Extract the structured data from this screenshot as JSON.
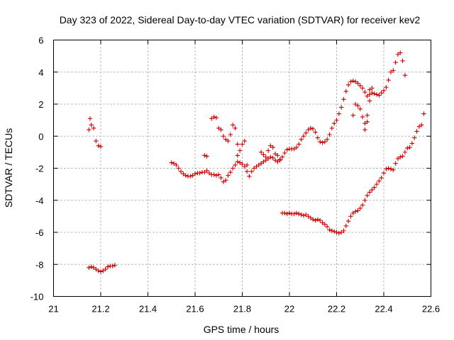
{
  "chart_data": {
    "type": "scatter",
    "title": "Day 323 of 2022, Sidereal Day-to-day VTEC variation (SDTVAR) for receiver kev2",
    "xlabel": "GPS time / hours",
    "ylabel": "SDTVAR / TECUs",
    "xlim": [
      21,
      22.6
    ],
    "ylim": [
      -10,
      6
    ],
    "xticks": [
      21,
      21.2,
      21.4,
      21.6,
      21.8,
      22,
      22.2,
      22.4,
      22.6
    ],
    "yticks": [
      -10,
      -8,
      -6,
      -4,
      -2,
      0,
      2,
      4,
      6
    ],
    "xtick_labels": [
      "21",
      "21.2",
      "21.4",
      "21.6",
      "21.8",
      "22",
      "22.2",
      "22.4",
      "22.6"
    ],
    "ytick_labels": [
      "-10",
      "-8",
      "-6",
      "-4",
      "-2",
      "0",
      "2",
      "4",
      "6"
    ],
    "grid": true,
    "marker": "+",
    "color": "#cc0000",
    "series": [
      {
        "name": "track-1",
        "points": [
          [
            21.15,
            0.4
          ],
          [
            21.155,
            1.1
          ],
          [
            21.16,
            0.7
          ],
          [
            21.17,
            0.5
          ],
          [
            21.18,
            -0.3
          ],
          [
            21.19,
            -0.6
          ],
          [
            21.2,
            -0.65
          ]
        ]
      },
      {
        "name": "track-2",
        "points": [
          [
            21.15,
            -8.2
          ],
          [
            21.16,
            -8.15
          ],
          [
            21.17,
            -8.2
          ],
          [
            21.18,
            -8.3
          ],
          [
            21.19,
            -8.4
          ],
          [
            21.2,
            -8.45
          ],
          [
            21.21,
            -8.4
          ],
          [
            21.22,
            -8.3
          ],
          [
            21.23,
            -8.15
          ],
          [
            21.24,
            -8.1
          ],
          [
            21.25,
            -8.1
          ],
          [
            21.26,
            -8.05
          ]
        ]
      },
      {
        "name": "track-3",
        "points": [
          [
            21.5,
            -1.65
          ],
          [
            21.51,
            -1.7
          ],
          [
            21.52,
            -1.8
          ],
          [
            21.53,
            -2.0
          ],
          [
            21.54,
            -2.2
          ],
          [
            21.55,
            -2.35
          ],
          [
            21.56,
            -2.45
          ],
          [
            21.57,
            -2.5
          ],
          [
            21.58,
            -2.5
          ],
          [
            21.59,
            -2.45
          ],
          [
            21.6,
            -2.35
          ],
          [
            21.61,
            -2.3
          ],
          [
            21.62,
            -2.3
          ],
          [
            21.63,
            -2.25
          ],
          [
            21.64,
            -2.25
          ],
          [
            21.65,
            -2.15
          ],
          [
            21.66,
            -2.3
          ],
          [
            21.67,
            -2.4
          ],
          [
            21.68,
            -2.4
          ],
          [
            21.69,
            -2.45
          ],
          [
            21.7,
            -2.4
          ],
          [
            21.71,
            -2.6
          ],
          [
            21.72,
            -2.85
          ],
          [
            21.73,
            -2.75
          ],
          [
            21.74,
            -2.45
          ],
          [
            21.75,
            -2.25
          ],
          [
            21.76,
            -2.0
          ],
          [
            21.77,
            -1.8
          ],
          [
            21.78,
            -1.6
          ],
          [
            21.79,
            -1.65
          ],
          [
            21.8,
            -1.75
          ],
          [
            21.81,
            -1.9
          ],
          [
            21.82,
            -2.2
          ],
          [
            21.83,
            -2.5
          ],
          [
            21.84,
            -2.2
          ],
          [
            21.85,
            -2.0
          ],
          [
            21.86,
            -1.9
          ],
          [
            21.87,
            -1.8
          ],
          [
            21.88,
            -1.7
          ],
          [
            21.89,
            -1.6
          ],
          [
            21.9,
            -1.5
          ],
          [
            21.91,
            -1.4
          ],
          [
            21.92,
            -1.3
          ],
          [
            21.93,
            -1.35
          ],
          [
            21.94,
            -1.5
          ],
          [
            21.95,
            -1.6
          ],
          [
            21.96,
            -1.45
          ],
          [
            21.97,
            -1.3
          ],
          [
            21.98,
            -1.05
          ],
          [
            21.99,
            -0.85
          ],
          [
            22.0,
            -0.8
          ],
          [
            22.01,
            -0.8
          ],
          [
            22.02,
            -0.8
          ],
          [
            22.03,
            -0.7
          ],
          [
            22.04,
            -0.5
          ],
          [
            22.05,
            -0.2
          ],
          [
            22.06,
            0.0
          ],
          [
            22.07,
            0.2
          ],
          [
            22.08,
            0.4
          ],
          [
            22.09,
            0.5
          ],
          [
            22.1,
            0.45
          ],
          [
            22.11,
            0.25
          ],
          [
            22.12,
            -0.1
          ],
          [
            22.13,
            -0.35
          ],
          [
            22.14,
            -0.4
          ],
          [
            22.15,
            -0.35
          ],
          [
            22.16,
            -0.2
          ],
          [
            22.17,
            0.1
          ],
          [
            22.18,
            0.5
          ],
          [
            22.19,
            0.8
          ],
          [
            22.2,
            1.0
          ],
          [
            22.21,
            1.4
          ],
          [
            22.22,
            1.8
          ],
          [
            22.23,
            2.3
          ],
          [
            22.24,
            2.8
          ],
          [
            22.25,
            3.2
          ],
          [
            22.26,
            3.4
          ],
          [
            22.27,
            3.45
          ],
          [
            22.28,
            3.4
          ],
          [
            22.29,
            3.3
          ],
          [
            22.3,
            3.15
          ],
          [
            22.31,
            3.0
          ],
          [
            22.32,
            2.75
          ],
          [
            22.33,
            2.5
          ],
          [
            22.34,
            2.6
          ],
          [
            22.35,
            2.7
          ],
          [
            22.36,
            2.65
          ],
          [
            22.37,
            2.6
          ],
          [
            22.38,
            2.55
          ],
          [
            22.39,
            2.7
          ],
          [
            22.4,
            2.85
          ],
          [
            22.41,
            3.05
          ],
          [
            22.42,
            3.5
          ],
          [
            22.43,
            4.0
          ],
          [
            22.44,
            4.1
          ],
          [
            22.45,
            4.6
          ],
          [
            22.46,
            5.1
          ],
          [
            22.47,
            5.2
          ],
          [
            22.48,
            4.7
          ],
          [
            22.49,
            3.8
          ]
        ]
      },
      {
        "name": "track-4",
        "points": [
          [
            21.97,
            -4.8
          ],
          [
            21.98,
            -4.8
          ],
          [
            21.99,
            -4.85
          ],
          [
            22.0,
            -4.8
          ],
          [
            22.01,
            -4.85
          ],
          [
            22.02,
            -4.85
          ],
          [
            22.03,
            -4.8
          ],
          [
            22.04,
            -4.85
          ],
          [
            22.05,
            -4.9
          ],
          [
            22.06,
            -4.95
          ],
          [
            22.07,
            -4.9
          ],
          [
            22.08,
            -5.0
          ],
          [
            22.09,
            -5.1
          ],
          [
            22.1,
            -5.2
          ],
          [
            22.11,
            -5.25
          ],
          [
            22.12,
            -5.2
          ],
          [
            22.13,
            -5.25
          ],
          [
            22.14,
            -5.4
          ],
          [
            22.15,
            -5.5
          ],
          [
            22.16,
            -5.65
          ],
          [
            22.17,
            -5.85
          ],
          [
            22.18,
            -5.9
          ],
          [
            22.19,
            -5.95
          ],
          [
            22.2,
            -6.0
          ],
          [
            22.21,
            -6.05
          ],
          [
            22.22,
            -6.0
          ],
          [
            22.23,
            -5.9
          ],
          [
            22.24,
            -5.6
          ],
          [
            22.25,
            -5.3
          ],
          [
            22.26,
            -5.0
          ],
          [
            22.27,
            -4.8
          ],
          [
            22.28,
            -4.7
          ],
          [
            22.29,
            -4.65
          ],
          [
            22.3,
            -4.5
          ],
          [
            22.31,
            -4.3
          ],
          [
            22.32,
            -4.0
          ],
          [
            22.33,
            -3.7
          ],
          [
            22.34,
            -3.5
          ],
          [
            22.35,
            -3.35
          ],
          [
            22.36,
            -3.2
          ],
          [
            22.37,
            -3.0
          ],
          [
            22.38,
            -2.8
          ],
          [
            22.39,
            -2.6
          ],
          [
            22.4,
            -2.3
          ],
          [
            22.41,
            -2.05
          ],
          [
            22.42,
            -2.0
          ],
          [
            22.43,
            -2.05
          ],
          [
            22.44,
            -2.1
          ],
          [
            22.45,
            -1.7
          ],
          [
            22.46,
            -1.4
          ],
          [
            22.47,
            -1.3
          ],
          [
            22.48,
            -1.25
          ],
          [
            22.49,
            -1.0
          ],
          [
            22.5,
            -0.75
          ],
          [
            22.51,
            -0.7
          ],
          [
            22.52,
            -0.45
          ],
          [
            22.53,
            -0.1
          ],
          [
            22.54,
            0.3
          ],
          [
            22.55,
            0.6
          ],
          [
            22.56,
            0.7
          ],
          [
            22.57,
            1.4
          ]
        ]
      },
      {
        "name": "scatter-extra",
        "points": [
          [
            21.64,
            -1.2
          ],
          [
            21.65,
            -1.25
          ],
          [
            21.67,
            1.1
          ],
          [
            21.68,
            1.2
          ],
          [
            21.69,
            1.15
          ],
          [
            21.7,
            0.5
          ],
          [
            21.71,
            0.4
          ],
          [
            21.72,
            0.0
          ],
          [
            21.73,
            -0.2
          ],
          [
            21.74,
            -0.3
          ],
          [
            21.75,
            0.1
          ],
          [
            21.76,
            0.7
          ],
          [
            21.77,
            0.5
          ],
          [
            21.78,
            -0.5
          ],
          [
            21.78,
            -1.2
          ],
          [
            21.79,
            -0.9
          ],
          [
            21.8,
            -0.5
          ],
          [
            21.81,
            -0.3
          ],
          [
            21.82,
            -1.8
          ],
          [
            21.88,
            -1.0
          ],
          [
            21.89,
            -1.15
          ],
          [
            21.9,
            -1.3
          ],
          [
            21.91,
            -0.9
          ],
          [
            21.92,
            -0.6
          ],
          [
            21.93,
            -0.7
          ],
          [
            21.94,
            -1.1
          ],
          [
            21.95,
            -1.2
          ],
          [
            21.96,
            -1.5
          ],
          [
            22.27,
            1.3
          ],
          [
            22.28,
            2.0
          ],
          [
            22.29,
            1.9
          ],
          [
            22.3,
            1.7
          ],
          [
            22.31,
            1.2
          ],
          [
            22.32,
            0.8
          ],
          [
            22.32,
            0.4
          ],
          [
            22.33,
            0.9
          ],
          [
            22.33,
            1.3
          ],
          [
            22.34,
            2.2
          ],
          [
            22.34,
            2.9
          ],
          [
            22.35,
            3.0
          ]
        ]
      }
    ]
  }
}
